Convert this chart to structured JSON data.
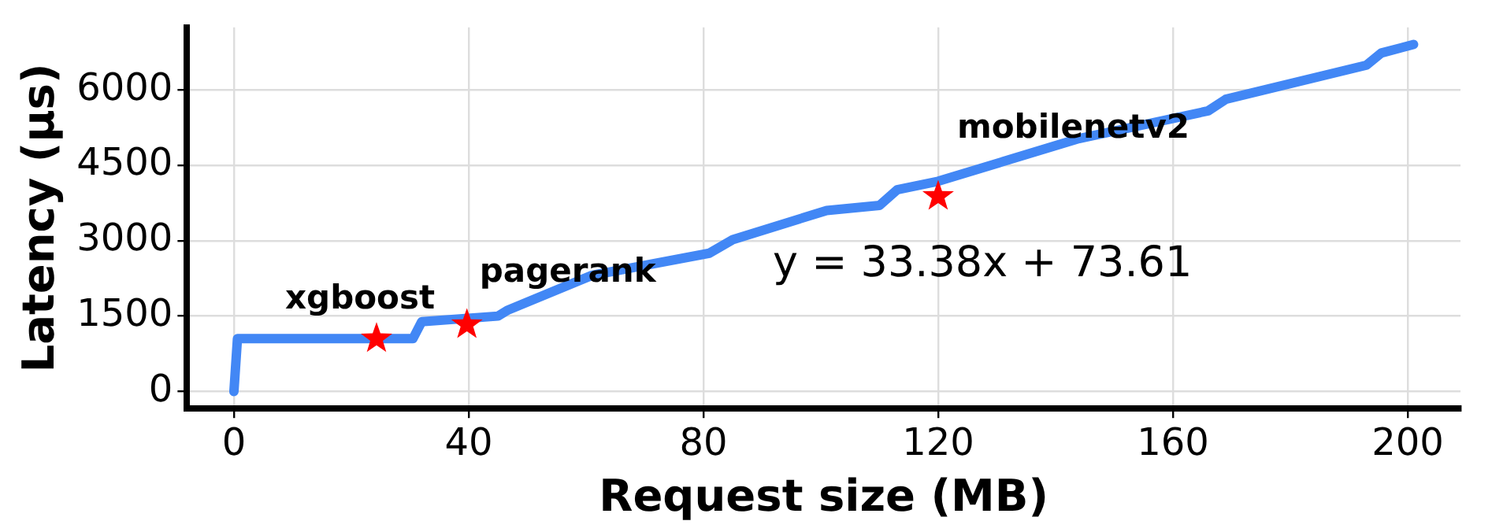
{
  "chart_data": {
    "type": "line",
    "xlabel": "Request size (MB)",
    "ylabel": "Latency (μs)",
    "xlim": [
      -8,
      209
    ],
    "ylim": [
      -340,
      7240
    ],
    "xticks": [
      0,
      40,
      80,
      120,
      160,
      200
    ],
    "yticks": [
      0,
      1500,
      3000,
      4500,
      6000
    ],
    "grid": true,
    "legend": false,
    "series": [
      {
        "color": "#4287f5",
        "marker": "none",
        "x": [
          0,
          0.6,
          30.5,
          32,
          45,
          46.7,
          61,
          81,
          85,
          101,
          110,
          113,
          120,
          144,
          166,
          169,
          193,
          195.5,
          201
        ],
        "values": [
          0,
          1050,
          1050,
          1390,
          1500,
          1620,
          2310,
          2750,
          3020,
          3600,
          3700,
          4010,
          4180,
          5030,
          5580,
          5810,
          6490,
          6730,
          6900
        ]
      },
      {
        "type": "scatter",
        "color": "#ff0000",
        "marker": "star",
        "x": [
          24.3,
          39.7,
          120
        ],
        "values": [
          1050,
          1330,
          3880
        ]
      }
    ],
    "annotations": [
      {
        "text": "xgboost",
        "x": 24.3,
        "y": 1050
      },
      {
        "text": "pagerank",
        "x": 39.7,
        "y": 1330
      },
      {
        "text": "mobilenetv2",
        "x": 120,
        "y": 3880
      },
      "y = 33.38x + 73.61"
    ]
  }
}
